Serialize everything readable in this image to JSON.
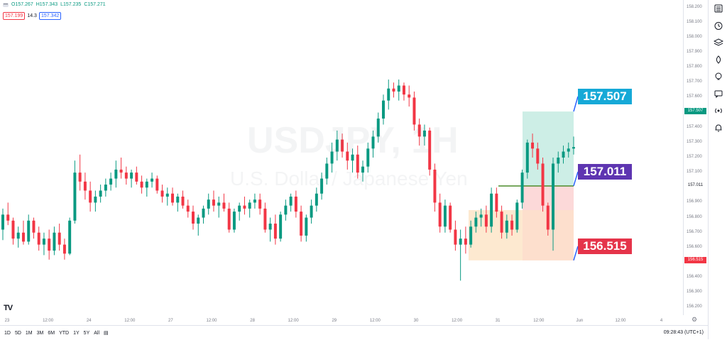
{
  "legend": {
    "open": "O157.267",
    "high": "H157.343",
    "low": "L157.235",
    "close": "C157.271",
    "sell_price": "157.199",
    "spread": "14.3",
    "buy_price": "157.342"
  },
  "watermark": {
    "symbol": "USDJPY, 1H",
    "description": "U.S. Dollar / Japanese Yen"
  },
  "position_tool": {
    "target": "157.507",
    "entry": "157.011",
    "stop": "156.515"
  },
  "price_axis": {
    "ticks": [
      "158.200",
      "158.100",
      "158.000",
      "157.900",
      "157.800",
      "157.700",
      "157.600",
      "157.400",
      "157.300",
      "157.200",
      "157.100",
      "156.900",
      "156.800",
      "156.700",
      "156.600",
      "156.400",
      "156.300",
      "156.200"
    ],
    "badges": {
      "target": "157.507",
      "entry": "157.011",
      "stop": "156.515"
    }
  },
  "time_axis": [
    "23",
    "12:00",
    "24",
    "12:00",
    "27",
    "12:00",
    "28",
    "12:00",
    "29",
    "12:00",
    "30",
    "12:00",
    "31",
    "12:00",
    "Jun",
    "12:00",
    "4"
  ],
  "bottom_bar": {
    "ranges": [
      "1D",
      "5D",
      "1M",
      "3M",
      "6M",
      "YTD",
      "1Y",
      "5Y",
      "All"
    ],
    "clock": "09:28:43 (UTC+1)"
  },
  "toolbar_icons": [
    "watchlist-icon",
    "alert-clock-icon",
    "layers-icon",
    "ideas-icon",
    "lightbulb-icon",
    "chat-icon",
    "broadcast-icon",
    "notification-bell-icon"
  ],
  "colors": {
    "up": "#089981",
    "down": "#f23645",
    "target_fill": "#cdeee6",
    "stop_fill": "#fcd9d9",
    "zone_fill": "#fde3c4",
    "entry_line": "#4c8b2b"
  },
  "chart_data": {
    "type": "candlestick",
    "symbol": "USDJPY",
    "interval": "1H",
    "ylim": [
      156.15,
      158.25
    ],
    "candles": [
      [
        156.72,
        156.86,
        156.65,
        156.82
      ],
      [
        156.82,
        156.9,
        156.75,
        156.78
      ],
      [
        156.78,
        156.8,
        156.62,
        156.66
      ],
      [
        156.66,
        156.74,
        156.6,
        156.7
      ],
      [
        156.7,
        156.78,
        156.62,
        156.64
      ],
      [
        156.64,
        156.82,
        156.62,
        156.78
      ],
      [
        156.78,
        156.8,
        156.66,
        156.7
      ],
      [
        156.7,
        156.74,
        156.58,
        156.62
      ],
      [
        156.62,
        156.7,
        156.55,
        156.66
      ],
      [
        156.66,
        156.72,
        156.52,
        156.58
      ],
      [
        156.58,
        156.74,
        156.55,
        156.7
      ],
      [
        156.7,
        156.76,
        156.58,
        156.62
      ],
      [
        156.62,
        156.66,
        156.52,
        156.56
      ],
      [
        156.56,
        156.8,
        156.55,
        156.78
      ],
      [
        156.78,
        157.18,
        156.76,
        157.1
      ],
      [
        157.1,
        157.22,
        156.98,
        157.04
      ],
      [
        157.04,
        157.1,
        156.92,
        156.98
      ],
      [
        156.98,
        157.04,
        156.84,
        156.9
      ],
      [
        156.9,
        156.98,
        156.84,
        156.94
      ],
      [
        156.94,
        157.02,
        156.9,
        156.98
      ],
      [
        156.98,
        157.06,
        156.94,
        157.02
      ],
      [
        157.02,
        157.1,
        156.98,
        157.06
      ],
      [
        157.06,
        157.18,
        157.0,
        157.12
      ],
      [
        157.12,
        157.2,
        157.06,
        157.1
      ],
      [
        157.1,
        157.14,
        157.02,
        157.06
      ],
      [
        157.06,
        157.12,
        157.0,
        157.1
      ],
      [
        157.1,
        157.14,
        157.02,
        157.04
      ],
      [
        157.04,
        157.08,
        156.96,
        157.0
      ],
      [
        157.0,
        157.06,
        156.94,
        157.04
      ],
      [
        157.04,
        157.1,
        157.0,
        157.06
      ],
      [
        157.06,
        157.08,
        156.96,
        156.98
      ],
      [
        156.98,
        157.02,
        156.9,
        156.94
      ],
      [
        156.94,
        157.0,
        156.88,
        156.96
      ],
      [
        156.96,
        157.0,
        156.88,
        156.9
      ],
      [
        156.9,
        156.96,
        156.84,
        156.94
      ],
      [
        156.94,
        156.98,
        156.86,
        156.88
      ],
      [
        156.88,
        156.92,
        156.8,
        156.84
      ],
      [
        156.84,
        156.88,
        156.72,
        156.76
      ],
      [
        156.76,
        156.82,
        156.68,
        156.8
      ],
      [
        156.8,
        156.88,
        156.76,
        156.86
      ],
      [
        156.86,
        156.96,
        156.82,
        156.92
      ],
      [
        156.92,
        156.98,
        156.84,
        156.88
      ],
      [
        156.88,
        156.94,
        156.8,
        156.9
      ],
      [
        156.9,
        156.96,
        156.84,
        156.86
      ],
      [
        156.86,
        156.9,
        156.7,
        156.72
      ],
      [
        156.72,
        156.86,
        156.7,
        156.84
      ],
      [
        156.84,
        156.9,
        156.78,
        156.88
      ],
      [
        156.88,
        156.94,
        156.82,
        156.86
      ],
      [
        156.86,
        156.92,
        156.8,
        156.9
      ],
      [
        156.9,
        156.96,
        156.86,
        156.92
      ],
      [
        156.92,
        156.96,
        156.82,
        156.86
      ],
      [
        156.86,
        156.9,
        156.7,
        156.72
      ],
      [
        156.72,
        156.8,
        156.64,
        156.76
      ],
      [
        156.76,
        156.82,
        156.62,
        156.66
      ],
      [
        156.66,
        156.84,
        156.64,
        156.82
      ],
      [
        156.82,
        156.92,
        156.78,
        156.88
      ],
      [
        156.88,
        156.96,
        156.84,
        156.94
      ],
      [
        156.94,
        156.98,
        156.8,
        156.84
      ],
      [
        156.84,
        156.88,
        156.64,
        156.68
      ],
      [
        156.68,
        156.82,
        156.64,
        156.8
      ],
      [
        156.8,
        156.92,
        156.76,
        156.88
      ],
      [
        156.88,
        157.0,
        156.84,
        156.96
      ],
      [
        156.96,
        157.1,
        156.92,
        157.06
      ],
      [
        157.06,
        157.2,
        157.02,
        157.16
      ],
      [
        157.16,
        157.3,
        157.1,
        157.24
      ],
      [
        157.24,
        157.38,
        157.18,
        157.32
      ],
      [
        157.32,
        157.36,
        157.2,
        157.24
      ],
      [
        157.24,
        157.3,
        157.12,
        157.18
      ],
      [
        157.18,
        157.26,
        157.1,
        157.22
      ],
      [
        157.22,
        157.28,
        157.06,
        157.1
      ],
      [
        157.1,
        157.18,
        157.04,
        157.14
      ],
      [
        157.14,
        157.3,
        157.1,
        157.26
      ],
      [
        157.26,
        157.38,
        157.2,
        157.34
      ],
      [
        157.34,
        157.5,
        157.3,
        157.46
      ],
      [
        157.46,
        157.62,
        157.42,
        157.58
      ],
      [
        157.58,
        157.72,
        157.52,
        157.66
      ],
      [
        157.66,
        157.7,
        157.6,
        157.64
      ],
      [
        157.64,
        157.72,
        157.58,
        157.68
      ],
      [
        157.68,
        157.7,
        157.58,
        157.62
      ],
      [
        157.62,
        157.68,
        157.54,
        157.6
      ],
      [
        157.6,
        157.64,
        157.38,
        157.42
      ],
      [
        157.42,
        157.46,
        157.28,
        157.34
      ],
      [
        157.34,
        157.42,
        157.28,
        157.38
      ],
      [
        157.38,
        157.4,
        157.08,
        157.12
      ],
      [
        157.12,
        157.16,
        156.84,
        156.9
      ],
      [
        156.9,
        156.96,
        156.7,
        156.74
      ],
      [
        156.74,
        156.92,
        156.7,
        156.88
      ],
      [
        156.88,
        156.9,
        156.7,
        156.72
      ],
      [
        156.72,
        156.78,
        156.58,
        156.62
      ],
      [
        156.62,
        156.72,
        156.38,
        156.66
      ],
      [
        156.66,
        156.74,
        156.56,
        156.62
      ],
      [
        156.62,
        156.78,
        156.6,
        156.74
      ],
      [
        156.74,
        156.84,
        156.7,
        156.8
      ],
      [
        156.8,
        156.86,
        156.74,
        156.82
      ],
      [
        156.82,
        156.88,
        156.7,
        156.74
      ],
      [
        156.74,
        157.0,
        156.7,
        156.96
      ],
      [
        156.96,
        157.0,
        156.8,
        156.84
      ],
      [
        156.84,
        156.88,
        156.66,
        156.7
      ],
      [
        156.7,
        156.82,
        156.66,
        156.78
      ],
      [
        156.78,
        156.82,
        156.68,
        156.72
      ],
      [
        156.72,
        156.92,
        156.7,
        156.9
      ],
      [
        156.9,
        157.12,
        156.86,
        157.1
      ],
      [
        157.1,
        157.32,
        157.06,
        157.3
      ],
      [
        157.3,
        157.36,
        157.2,
        157.26
      ],
      [
        157.26,
        157.3,
        157.12,
        157.16
      ],
      [
        157.16,
        157.2,
        156.84,
        156.88
      ],
      [
        156.88,
        156.9,
        156.68,
        156.72
      ],
      [
        156.72,
        157.2,
        156.58,
        157.16
      ],
      [
        157.16,
        157.24,
        157.1,
        157.2
      ],
      [
        157.2,
        157.28,
        157.16,
        157.24
      ],
      [
        157.24,
        157.3,
        157.2,
        157.26
      ],
      [
        157.26,
        157.34,
        157.22,
        157.27
      ]
    ]
  }
}
